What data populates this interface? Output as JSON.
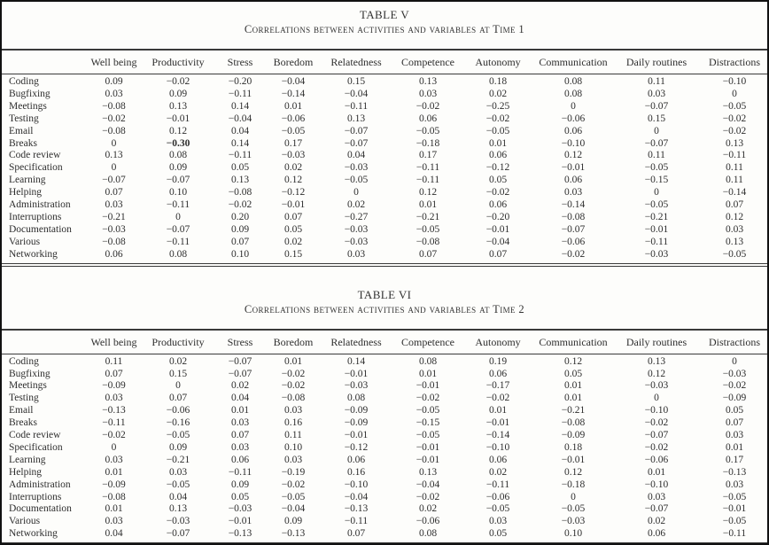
{
  "tables": [
    {
      "title": "TABLE V",
      "subtitle": "Correlations between activities and variables at Time 1",
      "columns": [
        "Well being",
        "Productivity",
        "Stress",
        "Boredom",
        "Relatedness",
        "Competence",
        "Autonomy",
        "Communication",
        "Daily routines",
        "Distractions"
      ],
      "rows": [
        {
          "label": "Coding",
          "values": [
            "0.09",
            "−0.02",
            "−0.20",
            "−0.04",
            "0.15",
            "0.13",
            "0.18",
            "0.08",
            "0.11",
            "−0.10"
          ]
        },
        {
          "label": "Bugfixing",
          "values": [
            "0.03",
            "0.09",
            "−0.11",
            "−0.14",
            "−0.04",
            "0.03",
            "0.02",
            "0.08",
            "0.03",
            "0"
          ]
        },
        {
          "label": "Meetings",
          "values": [
            "−0.08",
            "0.13",
            "0.14",
            "0.01",
            "−0.11",
            "−0.02",
            "−0.25",
            "0",
            "−0.07",
            "−0.05"
          ]
        },
        {
          "label": "Testing",
          "values": [
            "−0.02",
            "−0.01",
            "−0.04",
            "−0.06",
            "0.13",
            "0.06",
            "−0.02",
            "−0.06",
            "0.15",
            "−0.02"
          ]
        },
        {
          "label": "Email",
          "values": [
            "−0.08",
            "0.12",
            "0.04",
            "−0.05",
            "−0.07",
            "−0.05",
            "−0.05",
            "0.06",
            "0",
            "−0.02"
          ]
        },
        {
          "label": "Breaks",
          "values": [
            "0",
            "−0.30",
            "0.14",
            "0.17",
            "−0.07",
            "−0.18",
            "0.01",
            "−0.10",
            "−0.07",
            "0.13"
          ]
        },
        {
          "label": "Code review",
          "values": [
            "0.13",
            "0.08",
            "−0.11",
            "−0.03",
            "0.04",
            "0.17",
            "0.06",
            "0.12",
            "0.11",
            "−0.11"
          ]
        },
        {
          "label": "Specification",
          "values": [
            "0",
            "0.09",
            "0.05",
            "0.02",
            "−0.03",
            "−0.11",
            "−0.12",
            "−0.01",
            "−0.05",
            "0.11"
          ]
        },
        {
          "label": "Learning",
          "values": [
            "−0.07",
            "−0.07",
            "0.13",
            "0.12",
            "−0.05",
            "−0.11",
            "0.05",
            "0.06",
            "−0.15",
            "0.11"
          ]
        },
        {
          "label": "Helping",
          "values": [
            "0.07",
            "0.10",
            "−0.08",
            "−0.12",
            "0",
            "0.12",
            "−0.02",
            "0.03",
            "0",
            "−0.14"
          ]
        },
        {
          "label": "Administration",
          "values": [
            "0.03",
            "−0.11",
            "−0.02",
            "−0.01",
            "0.02",
            "0.01",
            "0.06",
            "−0.14",
            "−0.05",
            "0.07"
          ]
        },
        {
          "label": "Interruptions",
          "values": [
            "−0.21",
            "0",
            "0.20",
            "0.07",
            "−0.27",
            "−0.21",
            "−0.20",
            "−0.08",
            "−0.21",
            "0.12"
          ]
        },
        {
          "label": "Documentation",
          "values": [
            "−0.03",
            "−0.07",
            "0.09",
            "0.05",
            "−0.03",
            "−0.05",
            "−0.01",
            "−0.07",
            "−0.01",
            "0.03"
          ]
        },
        {
          "label": "Various",
          "values": [
            "−0.08",
            "−0.11",
            "0.07",
            "0.02",
            "−0.03",
            "−0.08",
            "−0.04",
            "−0.06",
            "−0.11",
            "0.13"
          ]
        },
        {
          "label": "Networking",
          "values": [
            "0.06",
            "0.08",
            "0.10",
            "0.15",
            "0.03",
            "0.07",
            "0.07",
            "−0.02",
            "−0.03",
            "−0.05"
          ]
        }
      ],
      "bold_cells": [
        [
          5,
          1
        ]
      ]
    },
    {
      "title": "TABLE VI",
      "subtitle": "Correlations between activities and variables at Time 2",
      "columns": [
        "Well being",
        "Productivity",
        "Stress",
        "Boredom",
        "Relatedness",
        "Competence",
        "Autonomy",
        "Communication",
        "Daily routines",
        "Distractions"
      ],
      "rows": [
        {
          "label": "Coding",
          "values": [
            "0.11",
            "0.02",
            "−0.07",
            "0.01",
            "0.14",
            "0.08",
            "0.19",
            "0.12",
            "0.13",
            "0"
          ]
        },
        {
          "label": "Bugfixing",
          "values": [
            "0.07",
            "0.15",
            "−0.07",
            "−0.02",
            "−0.01",
            "0.01",
            "0.06",
            "0.05",
            "0.12",
            "−0.03"
          ]
        },
        {
          "label": "Meetings",
          "values": [
            "−0.09",
            "0",
            "0.02",
            "−0.02",
            "−0.03",
            "−0.01",
            "−0.17",
            "0.01",
            "−0.03",
            "−0.02"
          ]
        },
        {
          "label": "Testing",
          "values": [
            "0.03",
            "0.07",
            "0.04",
            "−0.08",
            "0.08",
            "−0.02",
            "−0.02",
            "0.01",
            "0",
            "−0.09"
          ]
        },
        {
          "label": "Email",
          "values": [
            "−0.13",
            "−0.06",
            "0.01",
            "0.03",
            "−0.09",
            "−0.05",
            "0.01",
            "−0.21",
            "−0.10",
            "0.05"
          ]
        },
        {
          "label": "Breaks",
          "values": [
            "−0.11",
            "−0.16",
            "0.03",
            "0.16",
            "−0.09",
            "−0.15",
            "−0.01",
            "−0.08",
            "−0.02",
            "0.07"
          ]
        },
        {
          "label": "Code review",
          "values": [
            "−0.02",
            "−0.05",
            "0.07",
            "0.11",
            "−0.01",
            "−0.05",
            "−0.14",
            "−0.09",
            "−0.07",
            "0.03"
          ]
        },
        {
          "label": "Specification",
          "values": [
            "0",
            "0.09",
            "0.03",
            "0.10",
            "−0.12",
            "−0.01",
            "−0.10",
            "0.18",
            "−0.02",
            "0.01"
          ]
        },
        {
          "label": "Learning",
          "values": [
            "0.03",
            "−0.21",
            "0.06",
            "0.03",
            "0.06",
            "−0.01",
            "0.06",
            "−0.01",
            "−0.06",
            "0.17"
          ]
        },
        {
          "label": "Helping",
          "values": [
            "0.01",
            "0.03",
            "−0.11",
            "−0.19",
            "0.16",
            "0.13",
            "0.02",
            "0.12",
            "0.01",
            "−0.13"
          ]
        },
        {
          "label": "Administration",
          "values": [
            "−0.09",
            "−0.05",
            "0.09",
            "−0.02",
            "−0.10",
            "−0.04",
            "−0.11",
            "−0.18",
            "−0.10",
            "0.03"
          ]
        },
        {
          "label": "Interruptions",
          "values": [
            "−0.08",
            "0.04",
            "0.05",
            "−0.05",
            "−0.04",
            "−0.02",
            "−0.06",
            "0",
            "0.03",
            "−0.05"
          ]
        },
        {
          "label": "Documentation",
          "values": [
            "0.01",
            "0.13",
            "−0.03",
            "−0.04",
            "−0.13",
            "0.02",
            "−0.05",
            "−0.05",
            "−0.07",
            "−0.01"
          ]
        },
        {
          "label": "Various",
          "values": [
            "0.03",
            "−0.03",
            "−0.01",
            "0.09",
            "−0.11",
            "−0.06",
            "0.03",
            "−0.03",
            "0.02",
            "−0.05"
          ]
        },
        {
          "label": "Networking",
          "values": [
            "0.04",
            "−0.07",
            "−0.13",
            "−0.13",
            "0.07",
            "0.08",
            "0.05",
            "0.10",
            "0.06",
            "−0.11"
          ]
        }
      ],
      "bold_cells": []
    }
  ]
}
